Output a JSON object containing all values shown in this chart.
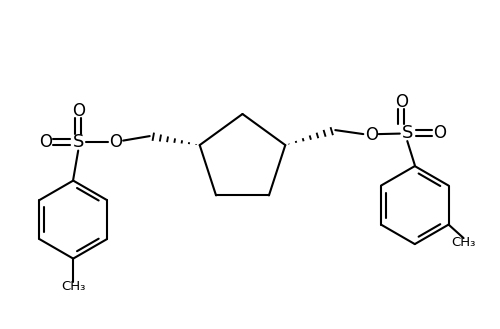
{
  "bg_color": "#ffffff",
  "line_color": "#000000",
  "lw": 1.5,
  "figsize": [
    5.0,
    3.29
  ],
  "dpi": 100,
  "xlim": [
    0,
    10
  ],
  "ylim": [
    0,
    6.58
  ]
}
